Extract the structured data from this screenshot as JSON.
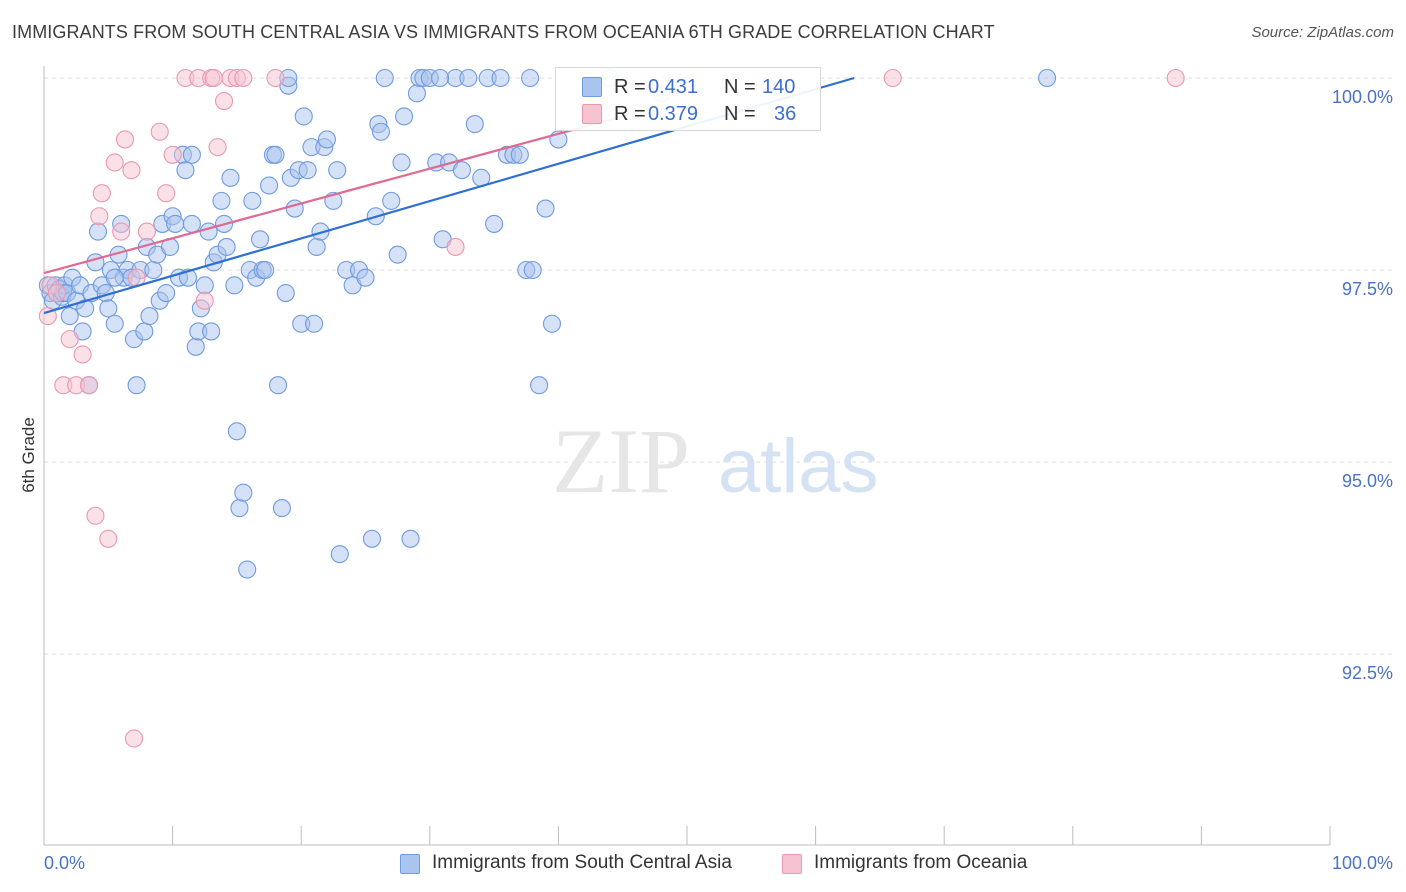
{
  "title": "IMMIGRANTS FROM SOUTH CENTRAL ASIA VS IMMIGRANTS FROM OCEANIA 6TH GRADE CORRELATION CHART",
  "source": "Source: ZipAtlas.com",
  "watermark": {
    "zip": "ZIP",
    "atlas": "atlas"
  },
  "colors": {
    "blue_fill": "#a9c4ee",
    "blue_stroke": "#6f9be0",
    "blue_line": "#2d6fd6",
    "pink_fill": "#f6c3d1",
    "pink_stroke": "#ea97b0",
    "pink_line": "#e06a92",
    "grid": "#dcdcdc",
    "label": "#4a72c4"
  },
  "legend": {
    "rows": [
      {
        "r_label": "R =",
        "r_value": "0.431",
        "n_label": "N =",
        "n_value": "140"
      },
      {
        "r_label": "R =",
        "r_value": "0.379",
        "n_label": "N =",
        "n_value": "36"
      }
    ]
  },
  "bottom_legend": [
    "Immigrants from South Central Asia",
    "Immigrants from Oceania"
  ],
  "chart_data": {
    "type": "scatter",
    "xlabel": "",
    "ylabel": "6th Grade",
    "xlim": [
      0,
      100
    ],
    "ylim": [
      90.0,
      100.4
    ],
    "x_tick_labels": [
      "0.0%",
      "100.0%"
    ],
    "y_ticks": [
      92.5,
      95.0,
      97.5,
      100.0
    ],
    "y_tick_labels": [
      "92.5%",
      "95.0%",
      "97.5%",
      "100.0%"
    ],
    "grid": true,
    "series": [
      {
        "name": "Immigrants from South Central Asia",
        "color": "blue",
        "trend": {
          "x": [
            0,
            63
          ],
          "y": [
            96.94,
            100.0
          ]
        },
        "points": [
          [
            0.3,
            97.3
          ],
          [
            0.5,
            97.2
          ],
          [
            0.7,
            97.1
          ],
          [
            0.9,
            97.3
          ],
          [
            1.0,
            97.2
          ],
          [
            1.2,
            97.25
          ],
          [
            1.4,
            97.15
          ],
          [
            1.5,
            97.2
          ],
          [
            1.6,
            97.3
          ],
          [
            1.8,
            97.2
          ],
          [
            2.0,
            96.9
          ],
          [
            2.2,
            97.4
          ],
          [
            2.5,
            97.1
          ],
          [
            2.8,
            97.3
          ],
          [
            3.0,
            96.7
          ],
          [
            3.2,
            97.0
          ],
          [
            3.5,
            96.0
          ],
          [
            3.7,
            97.2
          ],
          [
            4.0,
            97.6
          ],
          [
            4.2,
            98.0
          ],
          [
            4.5,
            97.3
          ],
          [
            4.8,
            97.2
          ],
          [
            5.0,
            97.0
          ],
          [
            5.2,
            97.5
          ],
          [
            5.5,
            96.8
          ],
          [
            5.8,
            97.7
          ],
          [
            6.0,
            98.1
          ],
          [
            6.2,
            97.4
          ],
          [
            6.5,
            97.5
          ],
          [
            6.8,
            97.4
          ],
          [
            7.0,
            96.6
          ],
          [
            7.2,
            96.0
          ],
          [
            7.5,
            97.5
          ],
          [
            7.8,
            96.7
          ],
          [
            8.0,
            97.8
          ],
          [
            8.2,
            96.9
          ],
          [
            8.5,
            97.5
          ],
          [
            8.8,
            97.7
          ],
          [
            9.0,
            97.1
          ],
          [
            9.2,
            98.1
          ],
          [
            9.5,
            97.2
          ],
          [
            9.8,
            97.8
          ],
          [
            10.0,
            98.2
          ],
          [
            10.2,
            98.1
          ],
          [
            10.5,
            97.4
          ],
          [
            10.8,
            99.0
          ],
          [
            11.0,
            98.8
          ],
          [
            11.2,
            97.4
          ],
          [
            11.5,
            98.1
          ],
          [
            11.8,
            96.5
          ],
          [
            12.0,
            96.7
          ],
          [
            12.2,
            97.0
          ],
          [
            12.5,
            97.3
          ],
          [
            12.8,
            98.0
          ],
          [
            13.0,
            96.7
          ],
          [
            13.2,
            97.6
          ],
          [
            13.5,
            97.7
          ],
          [
            13.8,
            98.4
          ],
          [
            14.0,
            98.1
          ],
          [
            14.2,
            97.8
          ],
          [
            14.5,
            98.7
          ],
          [
            14.8,
            97.3
          ],
          [
            15.0,
            95.4
          ],
          [
            15.2,
            94.4
          ],
          [
            15.5,
            94.6
          ],
          [
            15.8,
            93.6
          ],
          [
            16.0,
            97.5
          ],
          [
            16.2,
            98.4
          ],
          [
            16.5,
            97.4
          ],
          [
            16.8,
            97.9
          ],
          [
            17.0,
            97.5
          ],
          [
            17.2,
            97.5
          ],
          [
            17.5,
            98.6
          ],
          [
            17.8,
            99.0
          ],
          [
            18.0,
            99.0
          ],
          [
            18.2,
            96.0
          ],
          [
            18.5,
            94.4
          ],
          [
            18.8,
            97.2
          ],
          [
            19.0,
            99.9
          ],
          [
            19.2,
            98.7
          ],
          [
            19.5,
            98.3
          ],
          [
            19.8,
            98.8
          ],
          [
            20.0,
            96.8
          ],
          [
            20.2,
            99.5
          ],
          [
            20.5,
            98.8
          ],
          [
            20.8,
            99.1
          ],
          [
            21.0,
            96.8
          ],
          [
            21.2,
            97.8
          ],
          [
            21.5,
            98.0
          ],
          [
            21.8,
            99.1
          ],
          [
            22.0,
            99.2
          ],
          [
            22.5,
            98.4
          ],
          [
            22.8,
            98.8
          ],
          [
            23.0,
            93.8
          ],
          [
            23.5,
            97.5
          ],
          [
            24.0,
            97.3
          ],
          [
            24.5,
            97.5
          ],
          [
            25.0,
            97.4
          ],
          [
            25.5,
            94.0
          ],
          [
            25.8,
            98.2
          ],
          [
            26.0,
            99.4
          ],
          [
            26.2,
            99.3
          ],
          [
            26.5,
            100.0
          ],
          [
            27.0,
            98.4
          ],
          [
            27.5,
            97.7
          ],
          [
            27.8,
            98.9
          ],
          [
            28.0,
            99.5
          ],
          [
            28.5,
            94.0
          ],
          [
            29.0,
            99.8
          ],
          [
            29.2,
            100.0
          ],
          [
            29.5,
            100.0
          ],
          [
            30.0,
            100.0
          ],
          [
            30.5,
            98.9
          ],
          [
            31.0,
            97.9
          ],
          [
            31.5,
            98.9
          ],
          [
            32.0,
            100.0
          ],
          [
            32.5,
            98.8
          ],
          [
            33.0,
            100.0
          ],
          [
            33.5,
            99.4
          ],
          [
            34.0,
            98.7
          ],
          [
            34.5,
            100.0
          ],
          [
            35.0,
            98.1
          ],
          [
            35.5,
            100.0
          ],
          [
            36.0,
            99.0
          ],
          [
            36.5,
            99.0
          ],
          [
            37.0,
            99.0
          ],
          [
            37.5,
            97.5
          ],
          [
            38.0,
            97.5
          ],
          [
            38.5,
            96.0
          ],
          [
            39.0,
            98.3
          ],
          [
            39.5,
            96.8
          ],
          [
            40.0,
            99.2
          ],
          [
            44.0,
            100.0
          ],
          [
            48.0,
            99.8
          ],
          [
            78.0,
            100.0
          ],
          [
            19.0,
            100.0
          ],
          [
            30.8,
            100.0
          ],
          [
            37.8,
            100.0
          ],
          [
            11.5,
            99.0
          ],
          [
            5.5,
            97.4
          ]
        ]
      },
      {
        "name": "Immigrants from Oceania",
        "color": "pink",
        "trend": {
          "x": [
            0,
            45
          ],
          "y": [
            97.46,
            99.5
          ]
        },
        "points": [
          [
            0.3,
            96.9
          ],
          [
            0.5,
            97.3
          ],
          [
            1.0,
            97.2
          ],
          [
            1.5,
            96.0
          ],
          [
            2.0,
            96.6
          ],
          [
            2.5,
            96.0
          ],
          [
            3.0,
            96.4
          ],
          [
            3.5,
            96.0
          ],
          [
            4.0,
            94.3
          ],
          [
            4.3,
            98.2
          ],
          [
            4.5,
            98.5
          ],
          [
            5.0,
            94.0
          ],
          [
            5.5,
            98.9
          ],
          [
            6.0,
            98.0
          ],
          [
            6.3,
            99.2
          ],
          [
            6.8,
            98.8
          ],
          [
            7.2,
            97.4
          ],
          [
            8.0,
            98.0
          ],
          [
            9.0,
            99.3
          ],
          [
            9.5,
            98.5
          ],
          [
            10.0,
            99.0
          ],
          [
            11.0,
            100.0
          ],
          [
            12.0,
            100.0
          ],
          [
            12.5,
            97.1
          ],
          [
            13.0,
            100.0
          ],
          [
            13.2,
            100.0
          ],
          [
            13.5,
            99.1
          ],
          [
            14.0,
            99.7
          ],
          [
            14.5,
            100.0
          ],
          [
            15.0,
            100.0
          ],
          [
            15.5,
            100.0
          ],
          [
            18.0,
            100.0
          ],
          [
            32.0,
            97.8
          ],
          [
            66.0,
            100.0
          ],
          [
            88.0,
            100.0
          ],
          [
            7.0,
            91.4
          ]
        ]
      }
    ]
  }
}
